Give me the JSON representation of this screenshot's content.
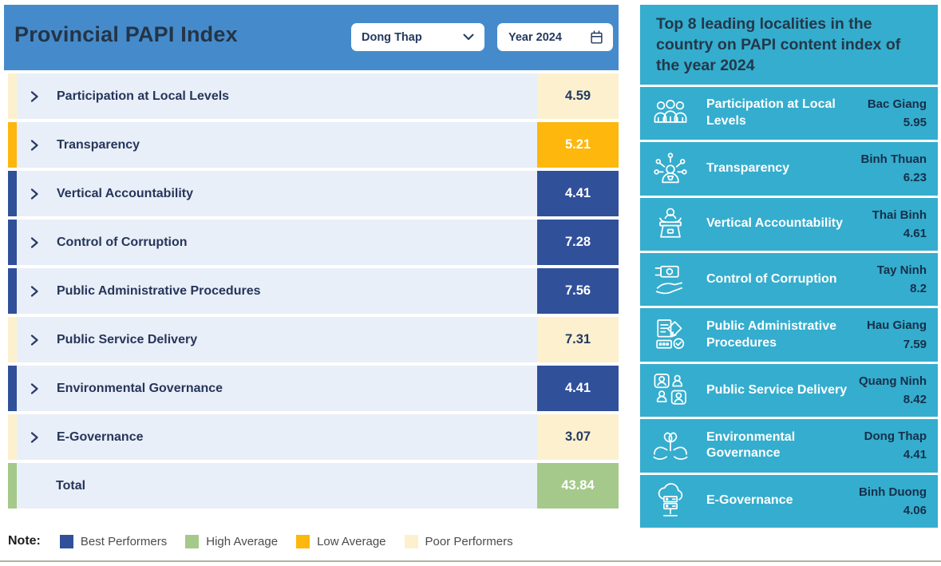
{
  "left_panel": {
    "title": "Provincial PAPI Index",
    "province_select": {
      "value": "Dong Thap",
      "icon": "chevron-down-icon"
    },
    "year_picker": {
      "value": "Year 2024",
      "icon": "calendar-icon"
    },
    "rows": [
      {
        "label": "Participation at Local Levels",
        "score": "4.59",
        "level": "poor"
      },
      {
        "label": "Transparency",
        "score": "5.21",
        "level": "low"
      },
      {
        "label": "Vertical Accountability",
        "score": "4.41",
        "level": "best"
      },
      {
        "label": "Control of Corruption",
        "score": "7.28",
        "level": "best"
      },
      {
        "label": "Public Administrative Procedures",
        "score": "7.56",
        "level": "best"
      },
      {
        "label": "Public Service Delivery",
        "score": "7.31",
        "level": "poor"
      },
      {
        "label": "Environmental Governance",
        "score": "4.41",
        "level": "best"
      },
      {
        "label": "E-Governance",
        "score": "3.07",
        "level": "poor"
      }
    ],
    "total_row": {
      "label": "Total",
      "score": "43.84",
      "level": "high"
    },
    "note": {
      "label": "Note:",
      "order": [
        "best",
        "high",
        "low",
        "poor"
      ]
    }
  },
  "right_panel": {
    "title": "Top 8 leading localities in the country on PAPI content index of the year 2024",
    "rows": [
      {
        "icon": "people-group-icon",
        "label": "Participation at Local Levels",
        "locality": "Bac Giang",
        "score": "5.95"
      },
      {
        "icon": "person-network-icon",
        "label": "Transparency",
        "locality": "Binh Thuan",
        "score": "6.23"
      },
      {
        "icon": "podium-speaker-icon",
        "label": "Vertical Accountability",
        "locality": "Thai Binh",
        "score": "4.61"
      },
      {
        "icon": "hand-money-icon",
        "label": "Control of Corruption",
        "locality": "Tay Ninh",
        "score": "8.2"
      },
      {
        "icon": "document-check-icon",
        "label": "Public Administrative Procedures",
        "locality": "Hau Giang",
        "score": "7.59"
      },
      {
        "icon": "service-people-icon",
        "label": "Public Service Delivery",
        "locality": "Quang Ninh",
        "score": "8.42"
      },
      {
        "icon": "hands-plant-icon",
        "label": "Environmental Governance",
        "locality": "Dong Thap",
        "score": "4.41"
      },
      {
        "icon": "cloud-server-icon",
        "label": "E-Governance",
        "locality": "Binh Duong",
        "score": "4.06"
      }
    ]
  },
  "colors": {
    "header_blue": "#458bcb",
    "row_background": "#e9eff8",
    "panel_teal": "#35adce",
    "bottom_line": "#b5b09c",
    "levels": {
      "best": {
        "bg": "#30509a",
        "text": "#ffffff",
        "label": "Best Performers"
      },
      "high": {
        "bg": "#a5c98a",
        "text": "#ffffff",
        "label": "High Average"
      },
      "low": {
        "bg": "#fdb70d",
        "text": "#ffffff",
        "label": "Low Average"
      },
      "poor": {
        "bg": "#fcf0ce",
        "text": "#233a63",
        "label": "Poor Performers"
      }
    }
  }
}
